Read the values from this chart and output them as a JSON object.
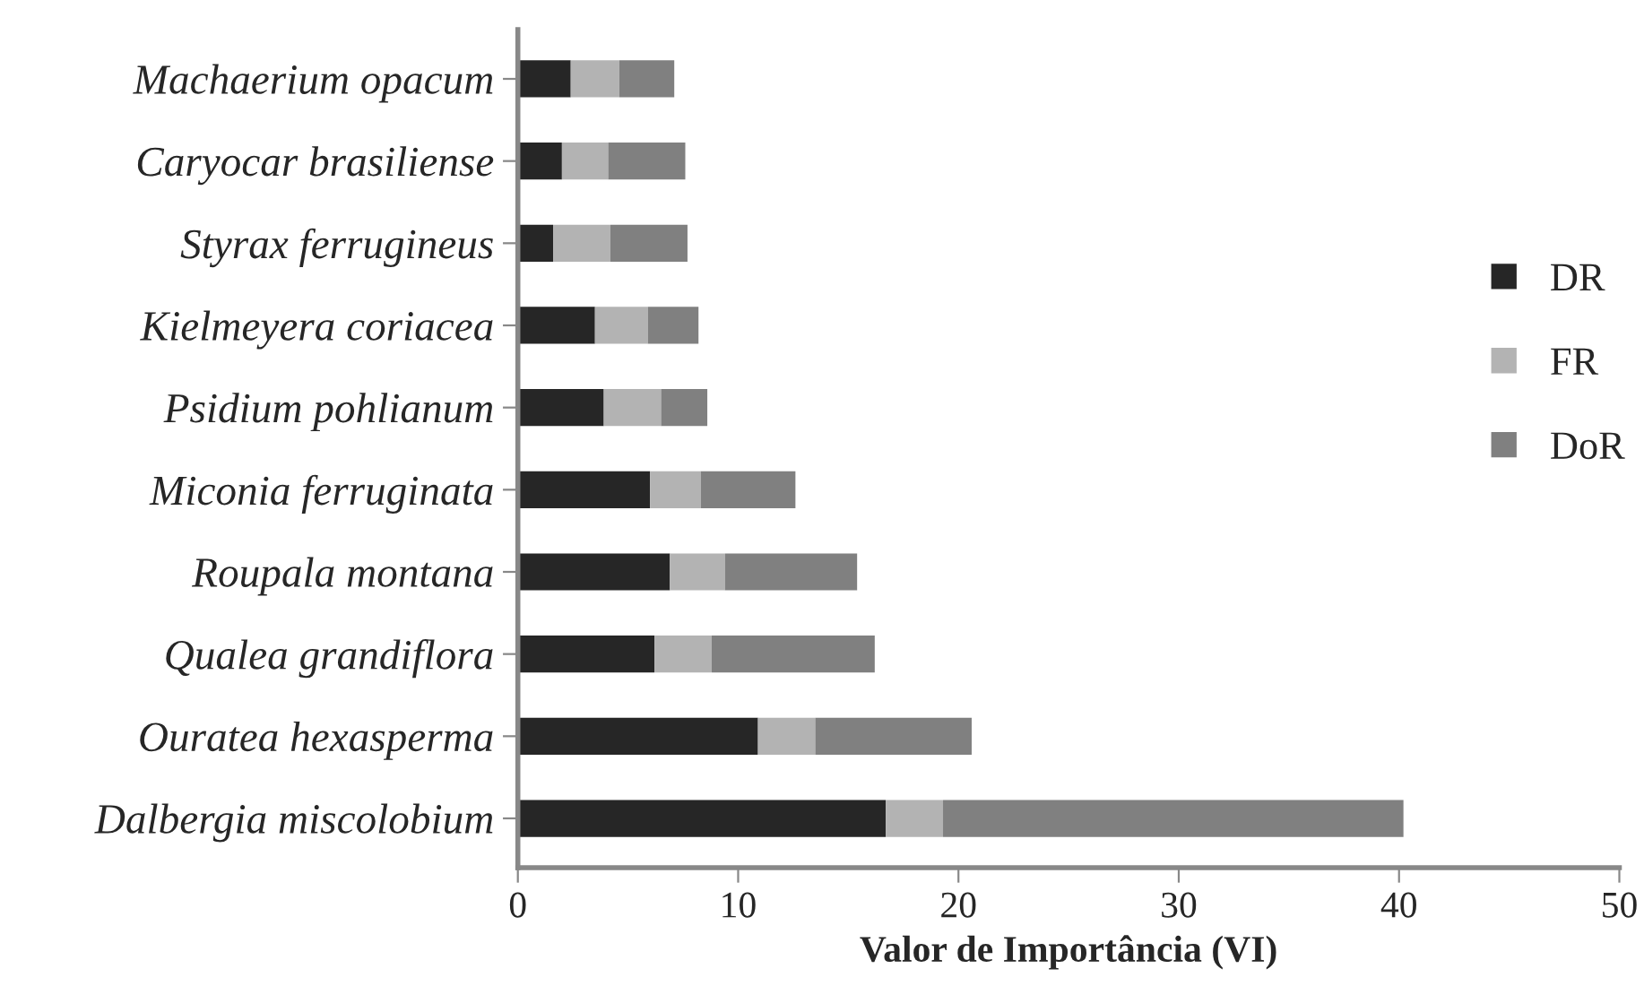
{
  "chart_data": {
    "type": "bar",
    "orientation": "horizontal",
    "stacked": true,
    "xlabel": "Valor de Importância (VI)",
    "categories": [
      "Machaerium opacum",
      "Caryocar brasiliense",
      "Styrax ferrugineus",
      "Kielmeyera coriacea",
      "Psidium pohlianum",
      "Miconia ferruginata",
      "Roupala montana",
      "Qualea grandiflora",
      "Ouratea hexasperma",
      "Dalbergia miscolobium"
    ],
    "series": [
      {
        "name": "DR",
        "color": "#262626",
        "values": [
          2.4,
          2.0,
          1.6,
          3.5,
          3.9,
          6.0,
          6.9,
          6.2,
          10.9,
          16.7
        ]
      },
      {
        "name": "FR",
        "color": "#b3b3b3",
        "values": [
          2.2,
          2.1,
          2.6,
          2.4,
          2.6,
          2.3,
          2.5,
          2.6,
          2.6,
          2.6
        ]
      },
      {
        "name": "DoR",
        "color": "#808080",
        "values": [
          2.5,
          3.5,
          3.5,
          2.3,
          2.1,
          4.3,
          6.0,
          7.4,
          7.1,
          20.9
        ]
      }
    ],
    "xlim": [
      0,
      50
    ],
    "xticks": [
      0,
      10,
      20,
      30,
      40,
      50
    ],
    "grid": false,
    "legend": "right"
  }
}
